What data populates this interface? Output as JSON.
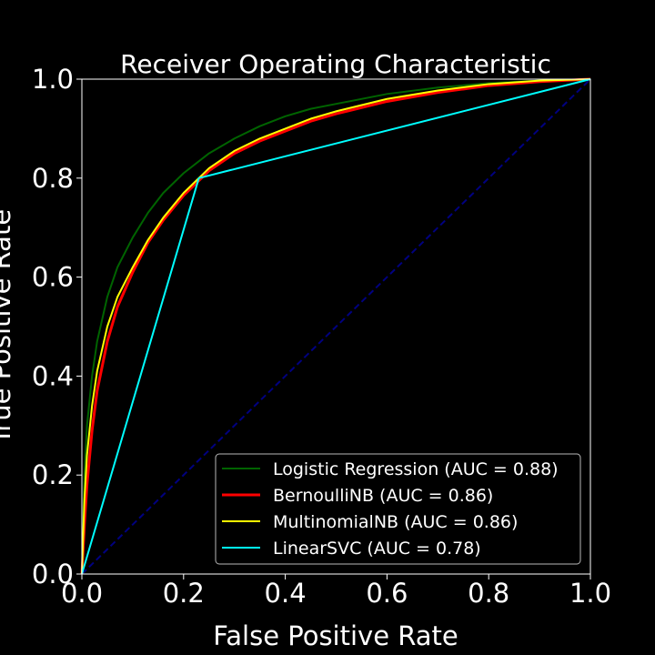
{
  "chart_data": {
    "type": "line",
    "title": "Receiver Operating Characteristic",
    "xlabel": "False Positive Rate",
    "ylabel": "True Positive Rate",
    "xlim": [
      0.0,
      1.0
    ],
    "ylim": [
      0.0,
      1.0
    ],
    "xticks": [
      "0.0",
      "0.2",
      "0.4",
      "0.6",
      "0.8",
      "1.0"
    ],
    "yticks": [
      "0.0",
      "0.2",
      "0.4",
      "0.6",
      "0.8",
      "1.0"
    ],
    "grid": false,
    "legend_position": "lower-right",
    "background": "#000000",
    "series": [
      {
        "name": "Logistic Regression (AUC = 0.88)",
        "color": "#006400",
        "x": [
          0.0,
          0.005,
          0.01,
          0.02,
          0.03,
          0.05,
          0.07,
          0.1,
          0.13,
          0.16,
          0.2,
          0.25,
          0.3,
          0.35,
          0.4,
          0.45,
          0.5,
          0.6,
          0.7,
          0.8,
          0.9,
          1.0
        ],
        "y": [
          0.0,
          0.2,
          0.3,
          0.4,
          0.47,
          0.56,
          0.62,
          0.68,
          0.73,
          0.77,
          0.81,
          0.85,
          0.88,
          0.905,
          0.925,
          0.94,
          0.95,
          0.97,
          0.983,
          0.992,
          0.997,
          1.0
        ]
      },
      {
        "name": "BernoulliNB (AUC = 0.86)",
        "color": "#ff0000",
        "x": [
          0.0,
          0.005,
          0.01,
          0.02,
          0.03,
          0.05,
          0.07,
          0.1,
          0.13,
          0.16,
          0.2,
          0.25,
          0.3,
          0.35,
          0.4,
          0.45,
          0.5,
          0.6,
          0.7,
          0.8,
          0.9,
          1.0
        ],
        "y": [
          0.0,
          0.1,
          0.18,
          0.29,
          0.37,
          0.47,
          0.54,
          0.61,
          0.67,
          0.715,
          0.765,
          0.815,
          0.85,
          0.875,
          0.895,
          0.915,
          0.93,
          0.955,
          0.973,
          0.987,
          0.995,
          1.0
        ]
      },
      {
        "name": "MultinomialNB (AUC = 0.86)",
        "color": "#ffff00",
        "x": [
          0.0,
          0.005,
          0.01,
          0.02,
          0.03,
          0.05,
          0.07,
          0.1,
          0.13,
          0.16,
          0.2,
          0.25,
          0.3,
          0.35,
          0.4,
          0.45,
          0.5,
          0.6,
          0.7,
          0.8,
          0.9,
          1.0
        ],
        "y": [
          0.0,
          0.15,
          0.24,
          0.34,
          0.41,
          0.5,
          0.56,
          0.62,
          0.675,
          0.72,
          0.77,
          0.82,
          0.855,
          0.88,
          0.9,
          0.92,
          0.935,
          0.96,
          0.977,
          0.99,
          0.997,
          1.0
        ]
      },
      {
        "name": "LinearSVC (AUC = 0.78)",
        "color": "#00ffff",
        "x": [
          0.0,
          0.23,
          1.0
        ],
        "y": [
          0.0,
          0.8,
          1.0
        ]
      }
    ],
    "diagonal": {
      "color": "#000080",
      "style": "dashed",
      "x": [
        0.0,
        1.0
      ],
      "y": [
        0.0,
        1.0
      ]
    }
  }
}
